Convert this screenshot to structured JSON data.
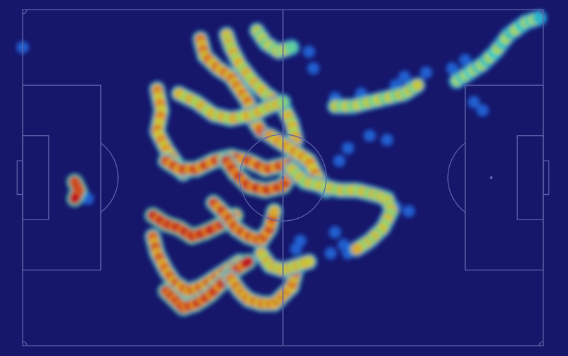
{
  "colors": {
    "background": "#16166b",
    "pitch_lines": "#5c63a8",
    "low": "#1a3ad8",
    "mid_low": "#2fd6d0",
    "mid": "#c8e23a",
    "mid_high": "#f19a1f",
    "high": "#c81414"
  },
  "chart_data": {
    "type": "heatmap",
    "title": "",
    "xlabel": "",
    "ylabel": "",
    "xlim": [
      0,
      120
    ],
    "ylim": [
      0,
      80
    ],
    "pitch": {
      "orientation": "horizontal",
      "grid": false,
      "legend": "none"
    },
    "colormap": "jet",
    "value_range": [
      0,
      1
    ],
    "tracks": [
      {
        "intensity": 0.75,
        "points": [
          [
            41,
            7
          ],
          [
            42,
            11
          ],
          [
            45,
            14
          ],
          [
            48,
            16
          ],
          [
            50,
            19
          ],
          [
            52,
            22
          ],
          [
            53,
            26
          ],
          [
            55,
            29
          ]
        ]
      },
      {
        "intensity": 0.6,
        "points": [
          [
            47,
            6
          ],
          [
            48,
            9
          ],
          [
            50,
            13
          ],
          [
            53,
            17
          ],
          [
            56,
            20
          ],
          [
            60,
            23
          ],
          [
            62,
            27
          ],
          [
            63,
            31
          ]
        ]
      },
      {
        "intensity": 0.5,
        "points": [
          [
            54,
            5
          ],
          [
            56,
            8
          ],
          [
            59,
            10
          ],
          [
            62,
            9
          ]
        ]
      },
      {
        "intensity": 0.7,
        "points": [
          [
            31,
            19
          ],
          [
            32,
            24
          ],
          [
            31,
            29
          ],
          [
            33,
            33
          ],
          [
            35,
            36
          ],
          [
            37,
            39
          ]
        ]
      },
      {
        "intensity": 0.6,
        "points": [
          [
            36,
            20
          ],
          [
            40,
            22
          ],
          [
            44,
            25
          ],
          [
            48,
            26
          ],
          [
            53,
            25
          ],
          [
            57,
            23
          ],
          [
            60,
            22
          ]
        ]
      },
      {
        "intensity": 0.85,
        "points": [
          [
            33,
            36
          ],
          [
            36,
            38
          ],
          [
            40,
            38
          ],
          [
            44,
            36
          ],
          [
            48,
            35
          ],
          [
            52,
            36
          ],
          [
            56,
            38
          ],
          [
            60,
            37
          ],
          [
            64,
            36
          ]
        ]
      },
      {
        "intensity": 0.9,
        "points": [
          [
            47,
            36
          ],
          [
            49,
            39
          ],
          [
            52,
            42
          ],
          [
            56,
            43
          ],
          [
            60,
            42
          ],
          [
            62,
            39
          ]
        ]
      },
      {
        "intensity": 0.7,
        "points": [
          [
            57,
            30
          ],
          [
            60,
            32
          ],
          [
            63,
            34
          ],
          [
            66,
            36
          ],
          [
            68,
            40
          ],
          [
            70,
            43
          ]
        ]
      },
      {
        "intensity": 0.55,
        "points": [
          [
            62,
            38
          ],
          [
            65,
            41
          ],
          [
            69,
            42
          ],
          [
            73,
            43
          ],
          [
            77,
            43
          ],
          [
            81,
            44
          ],
          [
            84,
            45
          ],
          [
            85,
            48
          ],
          [
            83,
            52
          ],
          [
            80,
            55
          ],
          [
            77,
            57
          ]
        ]
      },
      {
        "intensity": 0.5,
        "points": [
          [
            72,
            23
          ],
          [
            76,
            23
          ],
          [
            80,
            22
          ],
          [
            84,
            21
          ],
          [
            88,
            20
          ],
          [
            91,
            18
          ]
        ]
      },
      {
        "intensity": 0.95,
        "points": [
          [
            30,
            49
          ],
          [
            33,
            51
          ],
          [
            36,
            52
          ],
          [
            39,
            54
          ],
          [
            42,
            53
          ],
          [
            46,
            51
          ],
          [
            49,
            49
          ]
        ]
      },
      {
        "intensity": 0.85,
        "points": [
          [
            44,
            46
          ],
          [
            47,
            49
          ],
          [
            49,
            52
          ],
          [
            52,
            54
          ],
          [
            55,
            55
          ],
          [
            57,
            52
          ],
          [
            58,
            48
          ]
        ]
      },
      {
        "intensity": 0.8,
        "points": [
          [
            30,
            54
          ],
          [
            31,
            58
          ],
          [
            33,
            62
          ],
          [
            35,
            65
          ],
          [
            38,
            67
          ],
          [
            41,
            66
          ],
          [
            44,
            64
          ],
          [
            47,
            62
          ],
          [
            50,
            60
          ]
        ]
      },
      {
        "intensity": 0.9,
        "points": [
          [
            33,
            67
          ],
          [
            35,
            69
          ],
          [
            37,
            71
          ],
          [
            40,
            70
          ],
          [
            43,
            68
          ],
          [
            46,
            65
          ],
          [
            49,
            62
          ],
          [
            52,
            60
          ]
        ]
      },
      {
        "intensity": 0.75,
        "points": [
          [
            48,
            64
          ],
          [
            50,
            67
          ],
          [
            52,
            69
          ],
          [
            55,
            70
          ],
          [
            58,
            70
          ],
          [
            60,
            68
          ],
          [
            62,
            66
          ],
          [
            63,
            62
          ]
        ]
      },
      {
        "intensity": 0.6,
        "points": [
          [
            55,
            58
          ],
          [
            57,
            61
          ],
          [
            60,
            62
          ],
          [
            63,
            61
          ],
          [
            66,
            60
          ]
        ]
      },
      {
        "intensity": 0.95,
        "points": [
          [
            12,
            41
          ],
          [
            13,
            43
          ],
          [
            12,
            45
          ]
        ]
      },
      {
        "intensity": 0.4,
        "points": [
          [
            100,
            17
          ],
          [
            103,
            15
          ],
          [
            106,
            13
          ],
          [
            109,
            10
          ],
          [
            112,
            6
          ],
          [
            116,
            3
          ],
          [
            119,
            2
          ]
        ]
      }
    ],
    "scatter_low": [
      [
        0,
        9
      ],
      [
        66,
        10
      ],
      [
        67,
        14
      ],
      [
        72,
        21
      ],
      [
        78,
        20
      ],
      [
        82,
        22
      ],
      [
        86,
        18
      ],
      [
        88,
        16
      ],
      [
        93,
        15
      ],
      [
        99,
        14
      ],
      [
        103,
        15
      ],
      [
        104,
        22
      ],
      [
        106,
        24
      ],
      [
        102,
        12
      ],
      [
        110,
        9
      ],
      [
        117,
        3
      ],
      [
        112,
        6
      ],
      [
        80,
        30
      ],
      [
        84,
        31
      ],
      [
        75,
        33
      ],
      [
        73,
        36
      ],
      [
        86,
        47
      ],
      [
        89,
        48
      ],
      [
        72,
        53
      ],
      [
        74,
        56
      ],
      [
        75,
        58
      ],
      [
        71,
        58
      ],
      [
        14,
        44
      ],
      [
        15,
        45
      ],
      [
        63,
        57
      ],
      [
        64,
        55
      ]
    ]
  }
}
